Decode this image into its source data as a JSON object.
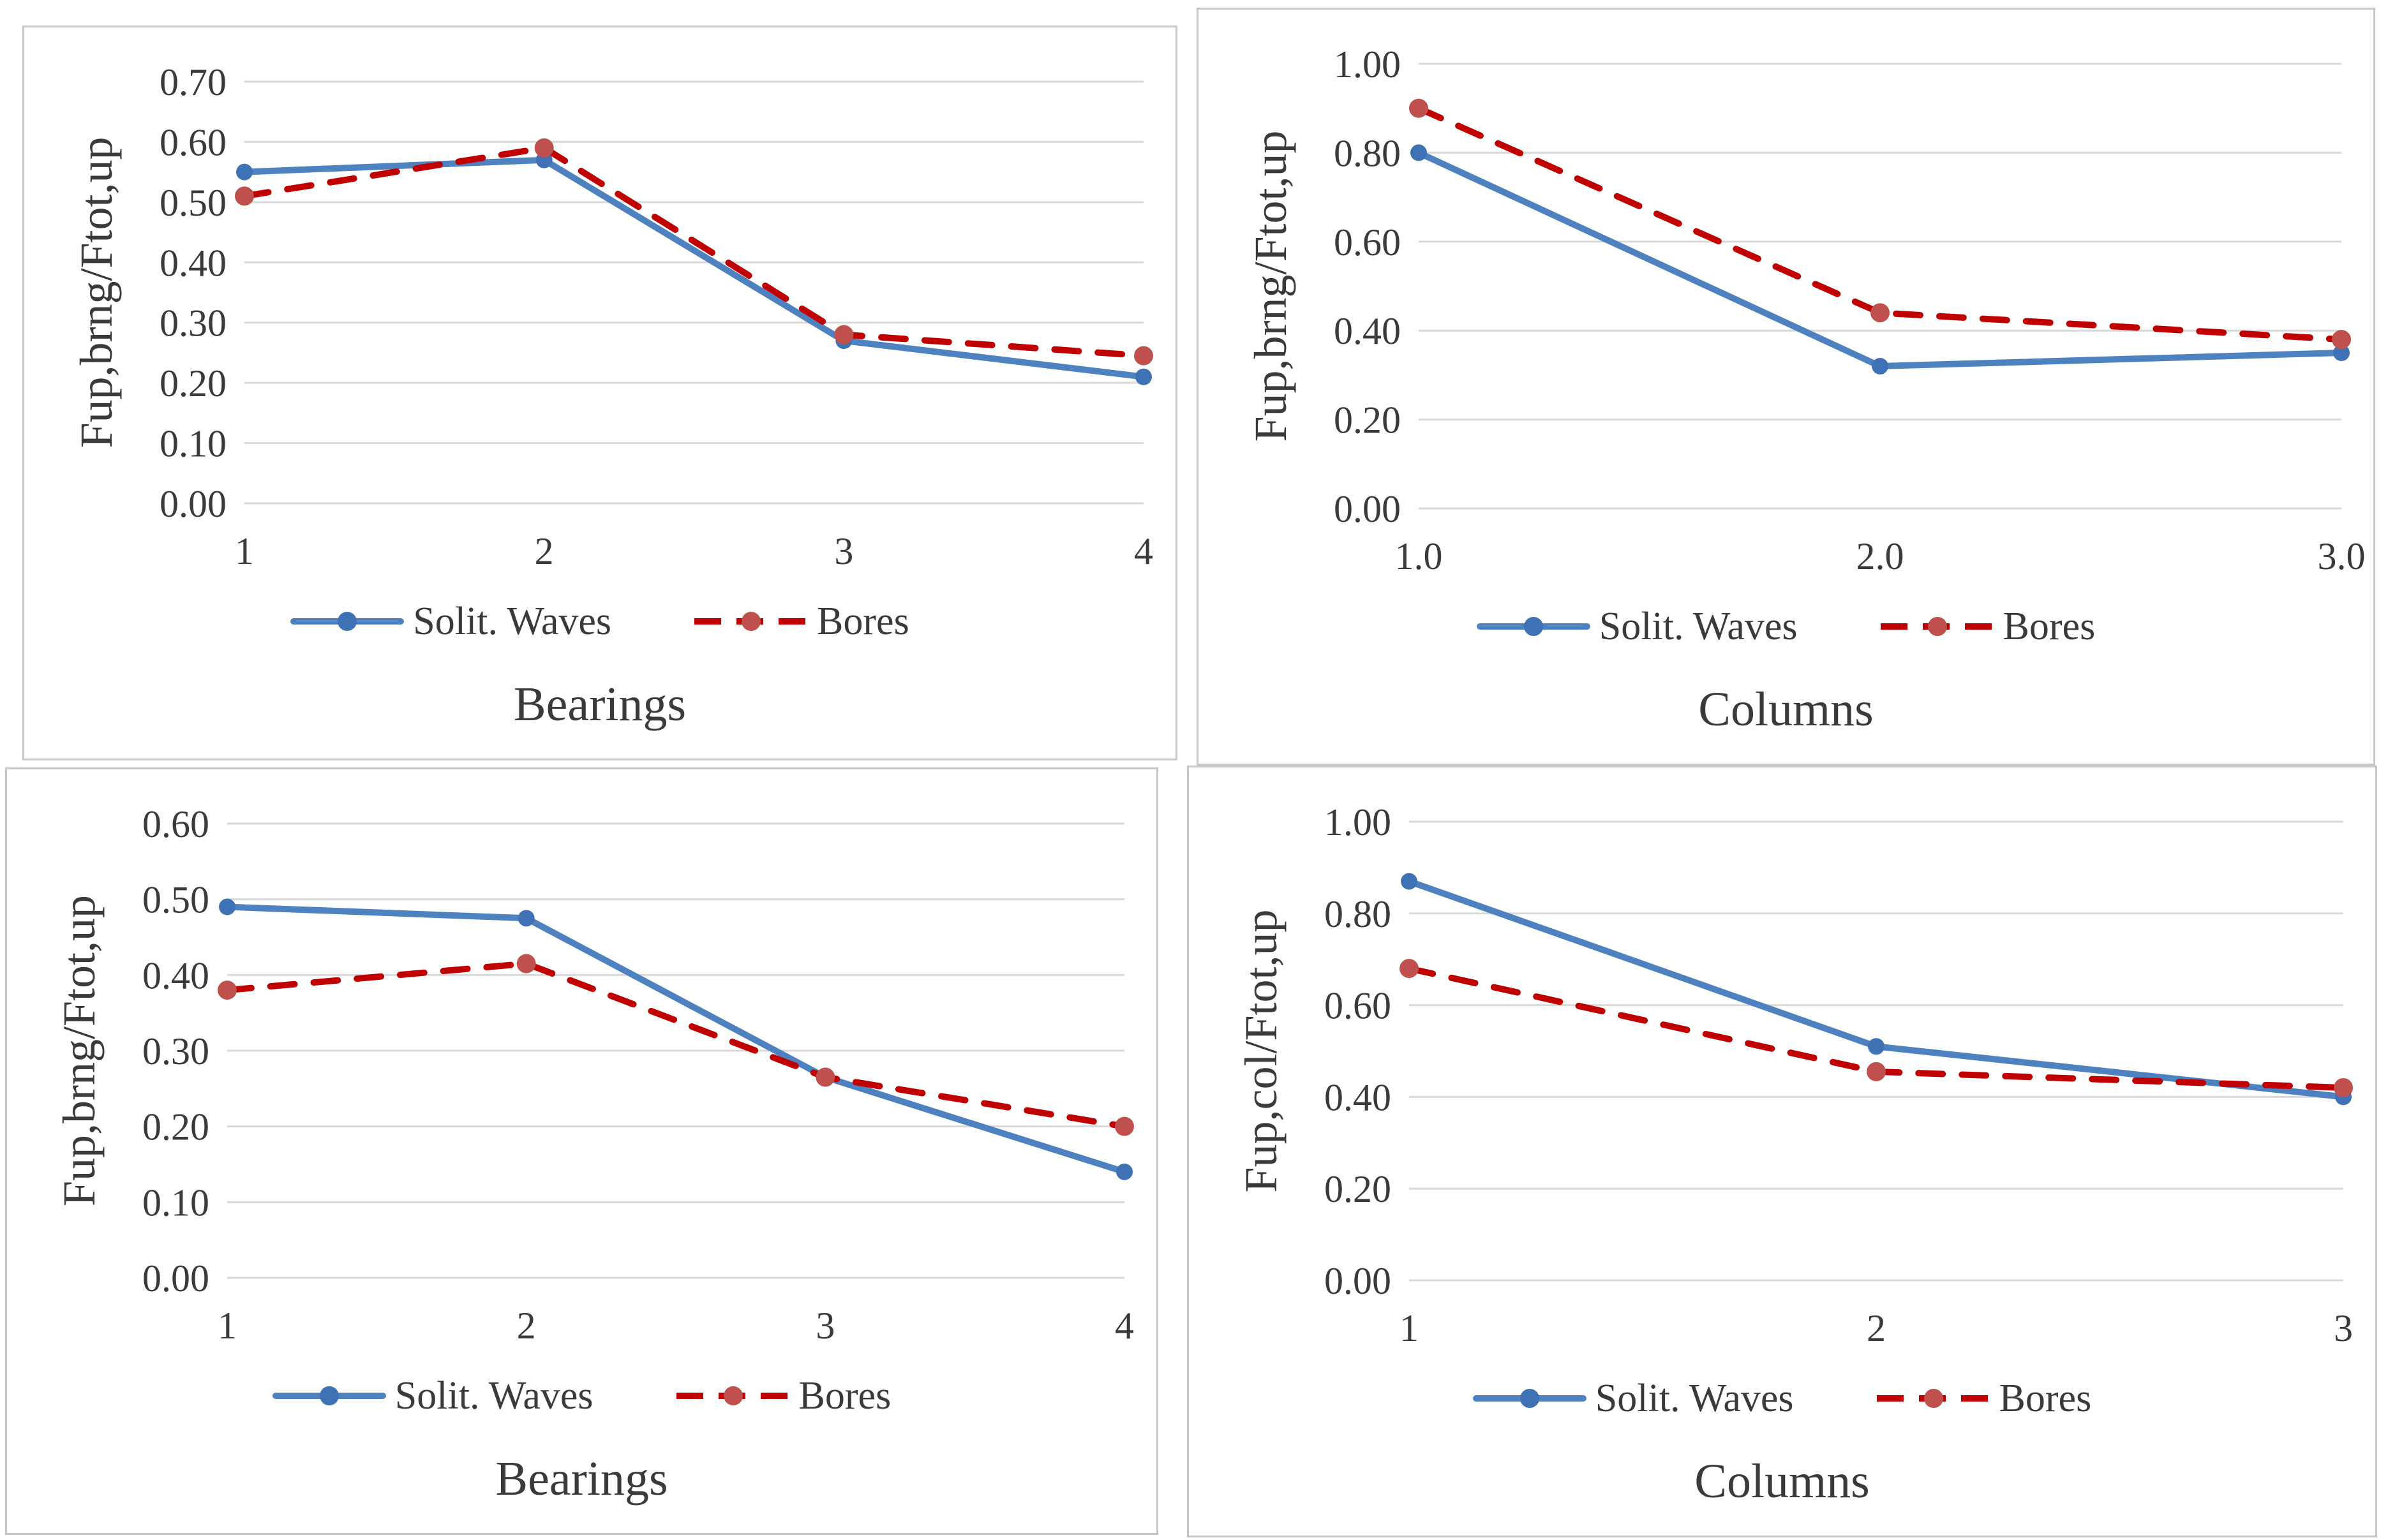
{
  "styles": {
    "page_bg": "#ffffff",
    "panel_bg": "#ffffff",
    "panel_border": "#c6c6c6",
    "grid_color": "#d9d9d9",
    "text_color": "#3a3a3a",
    "blue_line": "#4e81c0",
    "blue_marker": "#3f72b4",
    "red_line": "#c00000",
    "red_marker": "#c0504d"
  },
  "chart_data": [
    {
      "id": "bearings-brng-upper",
      "type": "line",
      "title": "",
      "xlabel": "Bearings",
      "ylabel": "Fup,brng/Ftot,up",
      "x_tick_labels": [
        "1",
        "2",
        "3",
        "4"
      ],
      "y_tick_labels": [
        "0.00",
        "0.10",
        "0.20",
        "0.30",
        "0.40",
        "0.50",
        "0.60",
        "0.70"
      ],
      "ylim": [
        0,
        0.7
      ],
      "grid": "horizontal",
      "legend_position": "bottom",
      "series": [
        {
          "name": "Solit. Waves",
          "style": "solid",
          "color_key": "blue",
          "marker": "circle",
          "values": [
            0.55,
            0.57,
            0.27,
            0.21
          ]
        },
        {
          "name": "Bores",
          "style": "dashed",
          "color_key": "red",
          "marker": "circle",
          "values": [
            0.51,
            0.59,
            0.28,
            0.245
          ]
        }
      ]
    },
    {
      "id": "columns-brng-upper",
      "type": "line",
      "title": "",
      "xlabel": "Columns",
      "ylabel": "Fup,brng/Ftot,up",
      "x_tick_labels": [
        "1.0",
        "2.0",
        "3.0"
      ],
      "y_tick_labels": [
        "0.00",
        "0.20",
        "0.40",
        "0.60",
        "0.80",
        "1.00"
      ],
      "ylim": [
        0,
        1.0
      ],
      "grid": "horizontal",
      "legend_position": "bottom",
      "series": [
        {
          "name": "Solit. Waves",
          "style": "solid",
          "color_key": "blue",
          "marker": "circle",
          "values": [
            0.8,
            0.32,
            0.35
          ]
        },
        {
          "name": "Bores",
          "style": "dashed",
          "color_key": "red",
          "marker": "circle",
          "values": [
            0.9,
            0.44,
            0.38
          ]
        }
      ]
    },
    {
      "id": "bearings-brng-lower",
      "type": "line",
      "title": "",
      "xlabel": "Bearings",
      "ylabel": "Fup,brng/Ftot,up",
      "x_tick_labels": [
        "1",
        "2",
        "3",
        "4"
      ],
      "y_tick_labels": [
        "0.00",
        "0.10",
        "0.20",
        "0.30",
        "0.40",
        "0.50",
        "0.60"
      ],
      "ylim": [
        0,
        0.6
      ],
      "grid": "horizontal",
      "legend_position": "bottom",
      "series": [
        {
          "name": "Solit. Waves",
          "style": "solid",
          "color_key": "blue",
          "marker": "circle",
          "values": [
            0.49,
            0.475,
            0.265,
            0.14
          ]
        },
        {
          "name": "Bores",
          "style": "dashed",
          "color_key": "red",
          "marker": "circle",
          "values": [
            0.38,
            0.415,
            0.265,
            0.2
          ]
        }
      ]
    },
    {
      "id": "columns-col-lower",
      "type": "line",
      "title": "",
      "xlabel": "Columns",
      "ylabel": "Fup,col/Ftot,up",
      "x_tick_labels": [
        "1",
        "2",
        "3"
      ],
      "y_tick_labels": [
        "0.00",
        "0.20",
        "0.40",
        "0.60",
        "0.80",
        "1.00"
      ],
      "ylim": [
        0,
        1.0
      ],
      "grid": "horizontal",
      "legend_position": "bottom",
      "series": [
        {
          "name": "Solit. Waves",
          "style": "solid",
          "color_key": "blue",
          "marker": "circle",
          "values": [
            0.87,
            0.51,
            0.4
          ]
        },
        {
          "name": "Bores",
          "style": "dashed",
          "color_key": "red",
          "marker": "circle",
          "values": [
            0.68,
            0.455,
            0.42
          ]
        }
      ]
    }
  ]
}
